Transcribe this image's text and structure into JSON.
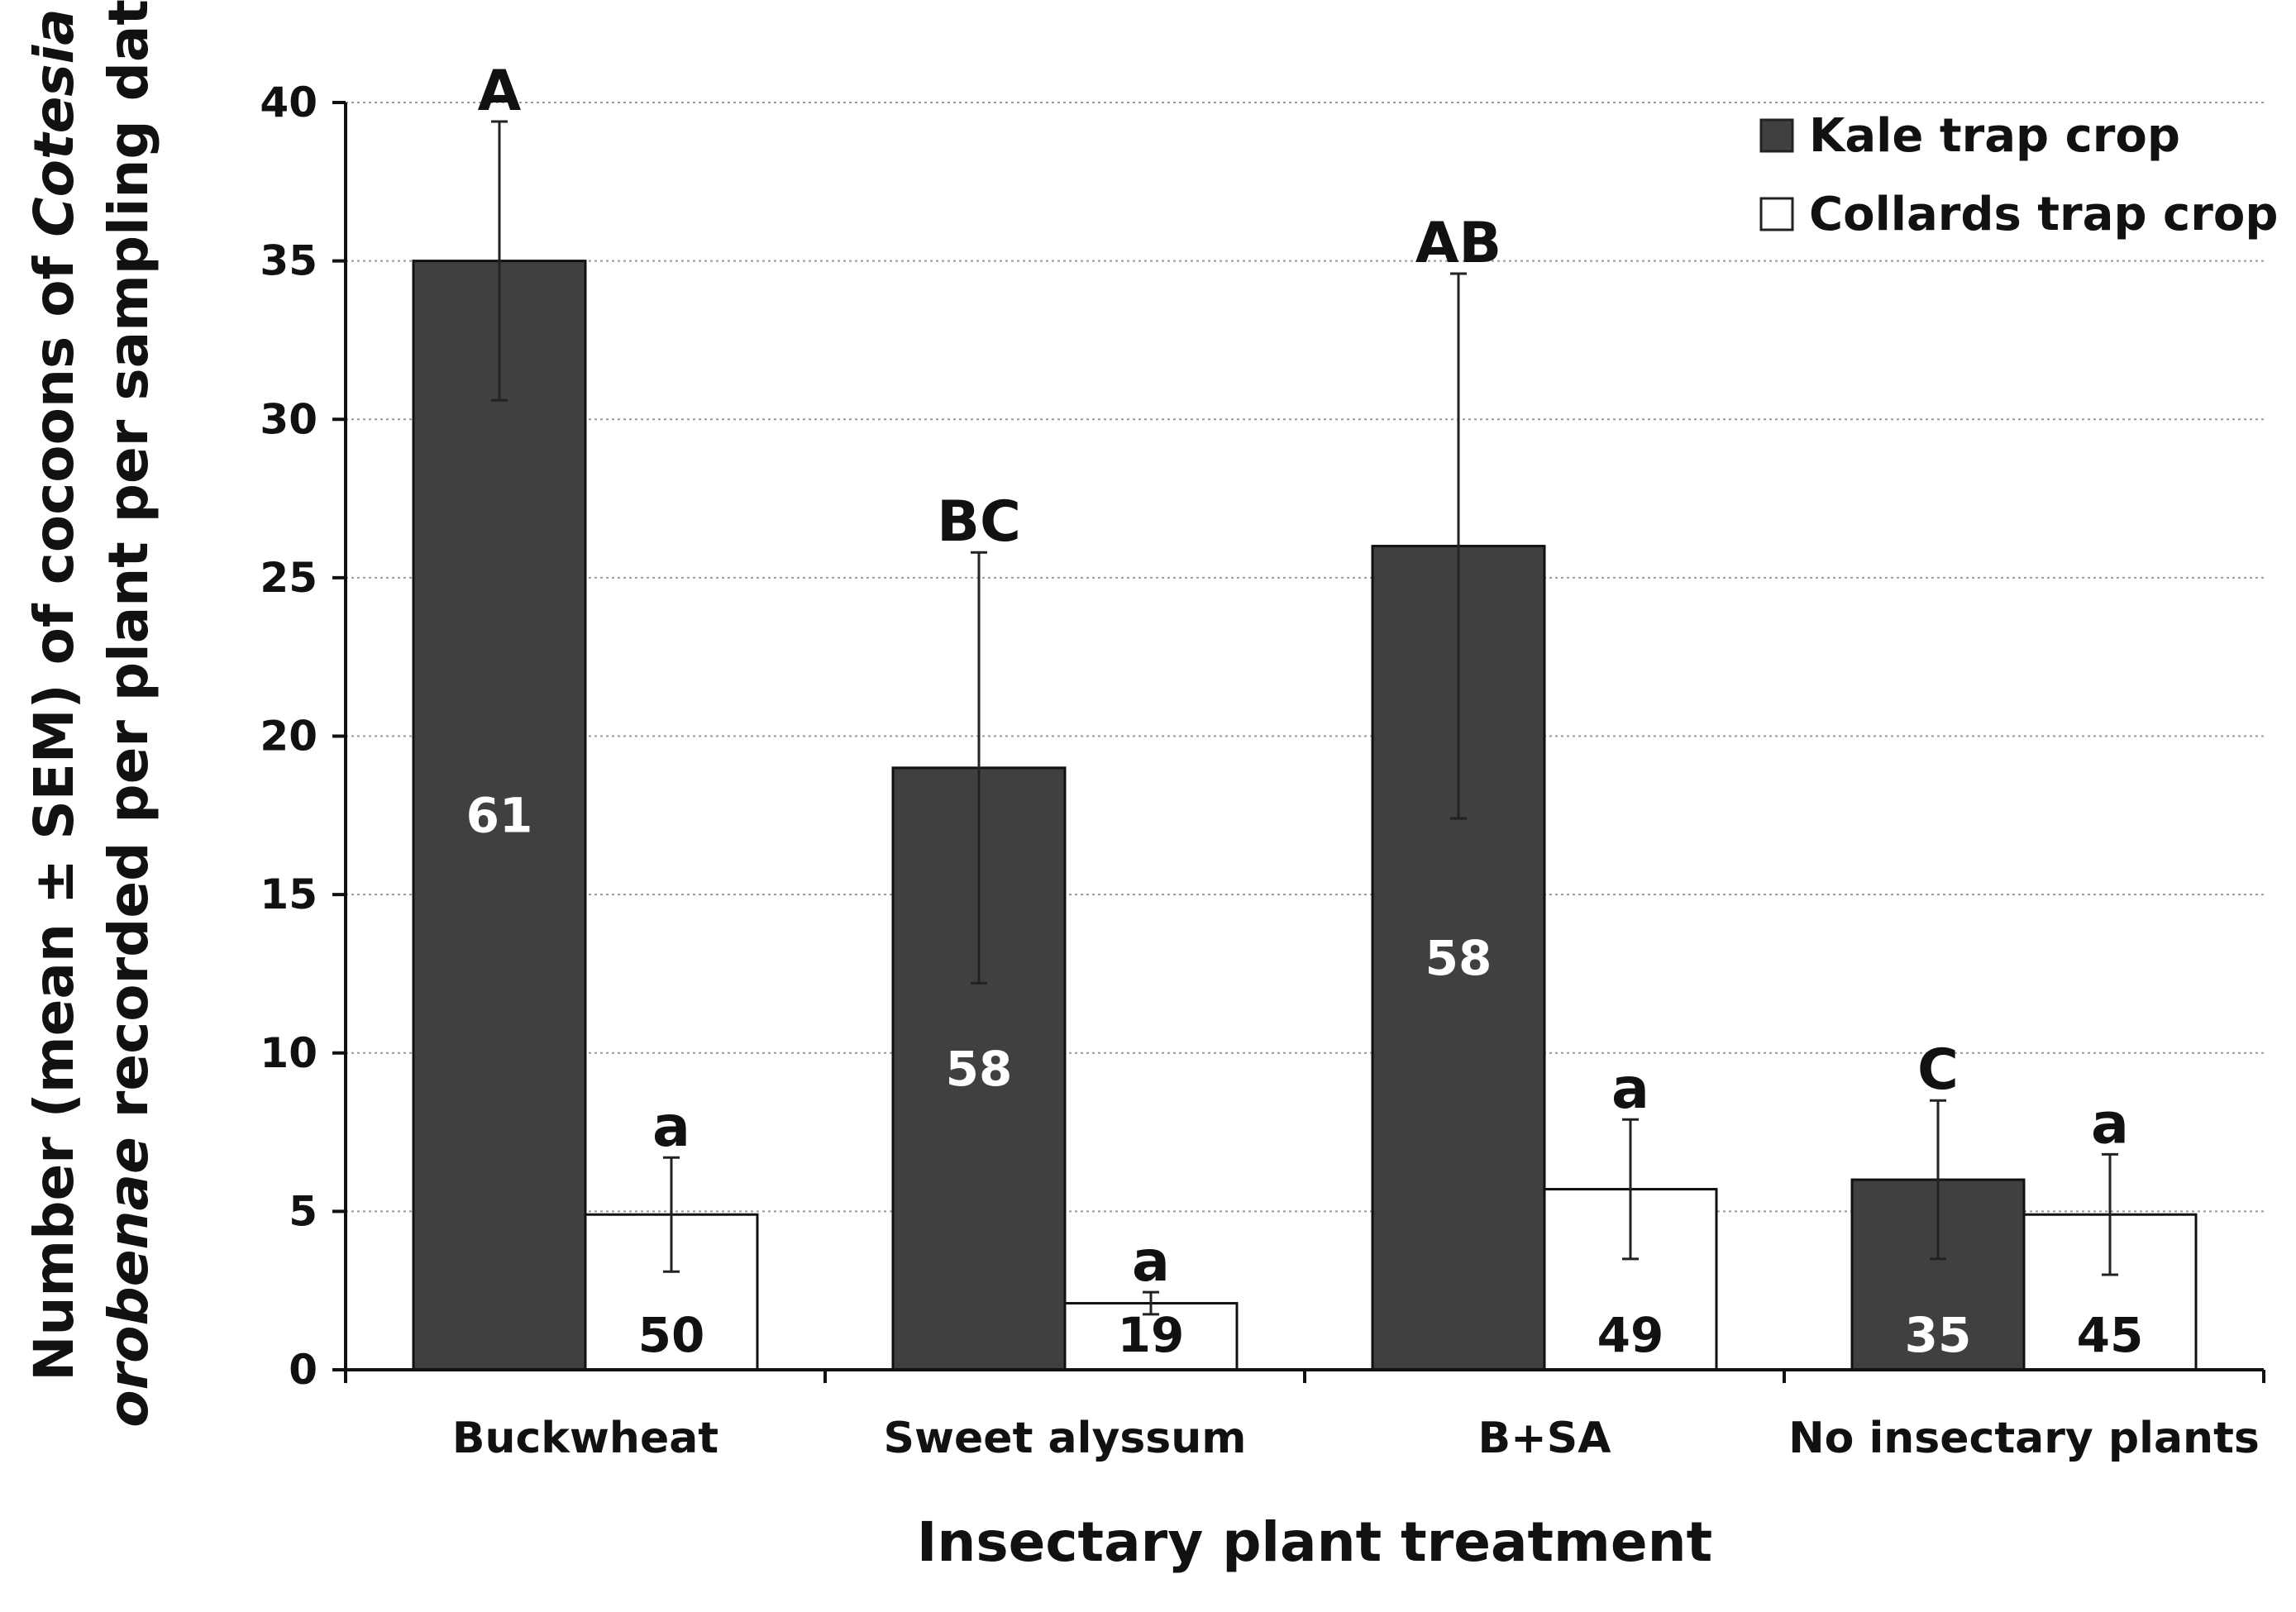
{
  "chart_data": {
    "type": "bar",
    "title": "",
    "xlabel": "Insectary plant treatment",
    "ylabel_parts": [
      {
        "text": "Number (mean ± SEM) of cocoons of ",
        "italic": false
      },
      {
        "text": "Cotesia",
        "italic": true
      }
    ],
    "ylabel_parts_line2": [
      {
        "text": "orobenae",
        "italic": true
      },
      {
        "text": " recorded per plant per sampling date",
        "italic": false
      }
    ],
    "ylim": [
      0,
      40
    ],
    "yticks": [
      "0",
      "5",
      "10",
      "15",
      "20",
      "25",
      "30",
      "35",
      "40"
    ],
    "grid": true,
    "legend_position": "top-right",
    "categories": [
      "Buckwheat",
      "Sweet alyssum",
      "B+SA",
      "No insectary plants"
    ],
    "series": [
      {
        "name": "Kale trap crop",
        "color": "#404040",
        "values": [
          35,
          19,
          26,
          6
        ],
        "errors": [
          4.4,
          6.8,
          8.6,
          2.5
        ],
        "sig_letters": [
          "A",
          "BC",
          "AB",
          "C"
        ],
        "n_labels": [
          "61",
          "58",
          "58",
          "35"
        ]
      },
      {
        "name": "Collards trap crop",
        "color": "#ffffff",
        "values": [
          4.9,
          2.1,
          5.7,
          4.9
        ],
        "errors": [
          1.8,
          0.35,
          2.2,
          1.9
        ],
        "sig_letters": [
          "a",
          "a",
          "a",
          "a"
        ],
        "n_labels": [
          "50",
          "19",
          "49",
          "45"
        ]
      }
    ]
  }
}
